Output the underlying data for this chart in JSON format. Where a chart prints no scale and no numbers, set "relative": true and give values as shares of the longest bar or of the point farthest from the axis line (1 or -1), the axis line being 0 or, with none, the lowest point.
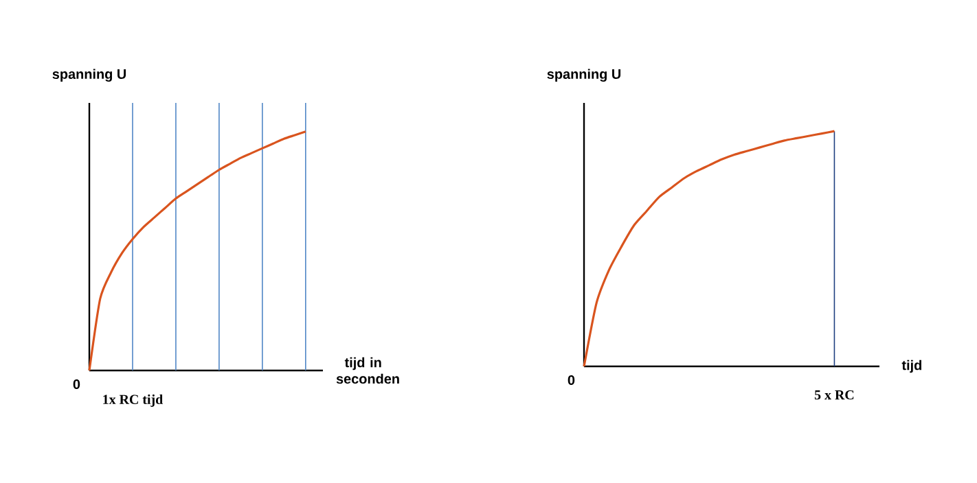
{
  "chart_data": [
    {
      "type": "line",
      "relative": true,
      "ylabel": "spanning U",
      "xlabel": "tijd in seconden",
      "color": "#d9541e",
      "categories": [
        null,
        null,
        null,
        null,
        null,
        null,
        null,
        null,
        null,
        null,
        null,
        null,
        null,
        null,
        null,
        null,
        null,
        null,
        null,
        null,
        null
      ],
      "values": [
        0,
        0.3,
        0.41,
        0.49,
        0.55,
        0.6,
        0.64,
        0.68,
        0.72,
        0.75,
        0.78,
        0.81,
        0.84,
        0.865,
        0.89,
        0.91,
        0.93,
        0.95,
        0.97,
        0.985,
        1
      ],
      "annotations": [
        "0",
        "1x RC tijd"
      ],
      "grid": "x"
    },
    {
      "type": "line",
      "relative": true,
      "ylabel": "spanning U",
      "xlabel": "tijd",
      "color": "#d9541e",
      "categories": [
        null,
        null,
        null,
        null,
        null,
        null,
        null,
        null,
        null,
        null,
        null,
        null,
        null,
        null,
        null,
        null,
        null,
        null,
        null,
        null,
        null
      ],
      "values": [
        0,
        0.27,
        0.41,
        0.51,
        0.6,
        0.66,
        0.72,
        0.76,
        0.8,
        0.83,
        0.855,
        0.88,
        0.9,
        0.915,
        0.93,
        0.945,
        0.96,
        0.97,
        0.98,
        0.99,
        1
      ],
      "annotations": [
        "0",
        "5 x RC"
      ]
    }
  ]
}
